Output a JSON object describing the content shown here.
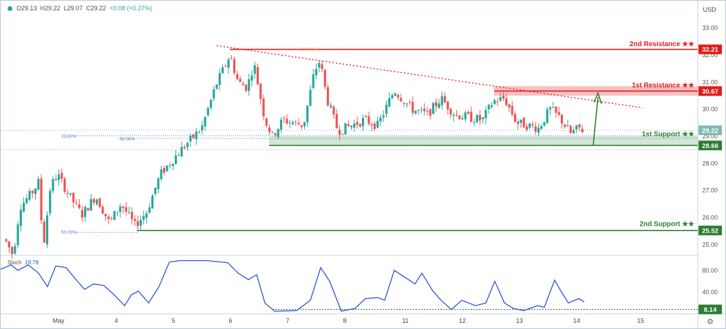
{
  "header": {
    "ohlc": {
      "open": "O29.13",
      "high": "H29.22",
      "low": "L29.07",
      "close": "C29.22",
      "change": "+0.08 (+0.27%)"
    },
    "currency": "USD"
  },
  "chart_data": [
    {
      "type": "candlestick",
      "y_ticks": [
        "33.00",
        "32.00",
        "31.00",
        "30.00",
        "29.00",
        "28.00",
        "27.00",
        "26.00",
        "25.00"
      ],
      "ylim": [
        24.6,
        33.6
      ],
      "x_ticks": [
        "May",
        "4",
        "5",
        "6",
        "7",
        "8",
        "11",
        "12",
        "13",
        "14",
        "15"
      ],
      "levels": [
        {
          "name": "2nd Resistance",
          "stars": "★★",
          "value": "32.21",
          "color": "#e31b1b"
        },
        {
          "name": "1st Resistance",
          "stars": "★★",
          "value": "30.67",
          "color": "#e31b1b"
        },
        {
          "name": "1st Support",
          "stars": "★★",
          "value": "28.66",
          "color": "#2e7d32"
        },
        {
          "name": "2nd Support",
          "stars": "★★",
          "value": "25.52",
          "color": "#2e7d32"
        }
      ],
      "last_price": "29.22",
      "fib_labels": [
        "23.60%",
        "50.00%",
        "50.00%",
        "100.00%"
      ],
      "candle_color_up": "#26a69a",
      "candle_color_down": "#ef5350"
    },
    {
      "type": "line",
      "indicator": "Stoch",
      "indicator_value": "19.78",
      "y_ticks": [
        "80.00",
        "40.00"
      ],
      "ylim": [
        0,
        100
      ],
      "current_value": "8.14",
      "line_color": "#2b4fd6"
    }
  ]
}
